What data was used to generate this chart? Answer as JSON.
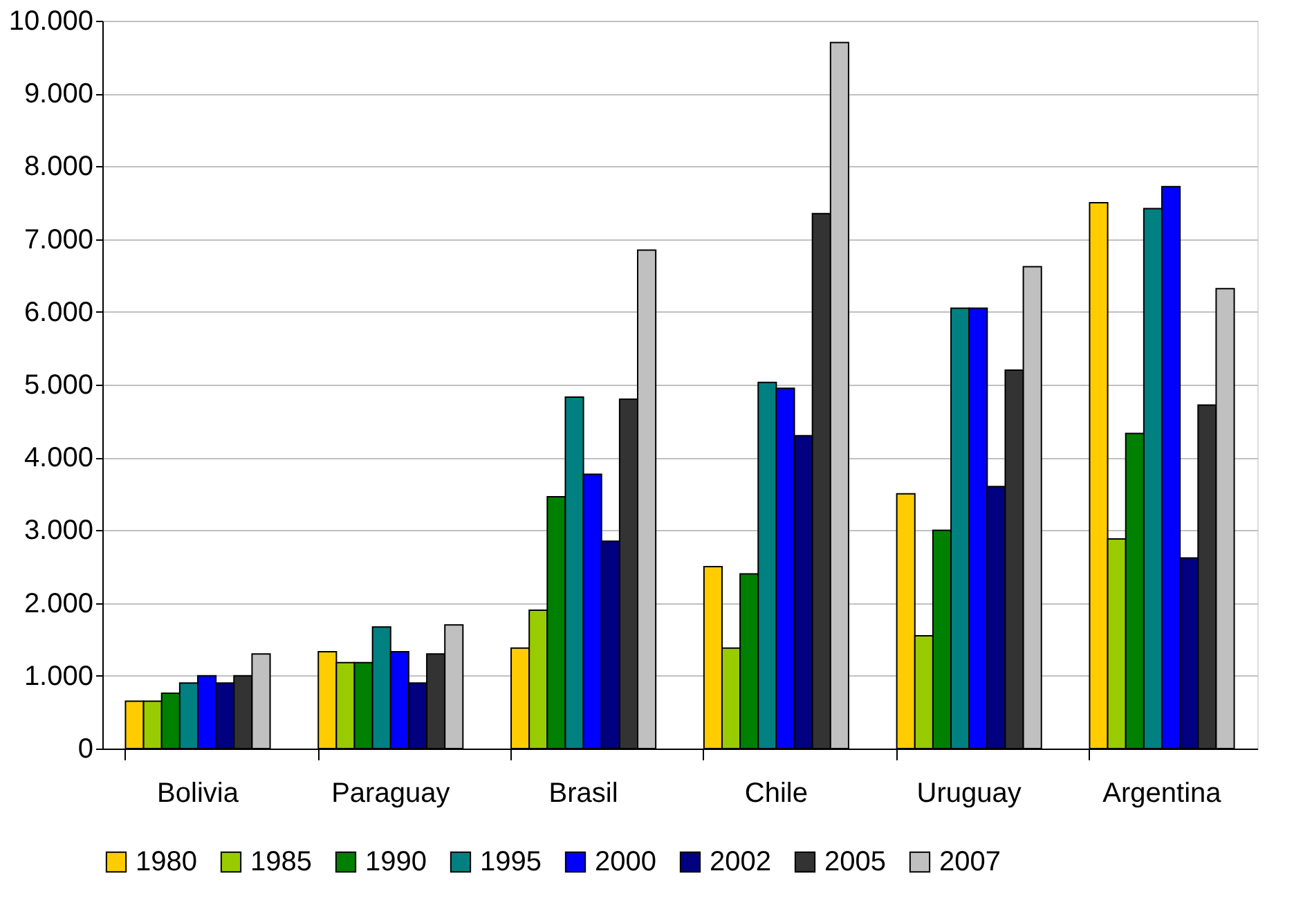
{
  "chart_data": {
    "type": "bar",
    "categories": [
      "Bolivia",
      "Paraguay",
      "Brasil",
      "Chile",
      "Uruguay",
      "Argentina"
    ],
    "series": [
      {
        "name": "1980",
        "color": "#ffcc00",
        "values": [
          650,
          1330,
          1380,
          2500,
          3500,
          7500
        ]
      },
      {
        "name": "1985",
        "color": "#99cc00",
        "values": [
          650,
          1180,
          1900,
          1380,
          1550,
          2880
        ]
      },
      {
        "name": "1990",
        "color": "#008000",
        "values": [
          760,
          1180,
          3460,
          2400,
          3000,
          4330
        ]
      },
      {
        "name": "1995",
        "color": "#008080",
        "values": [
          900,
          1670,
          4830,
          5030,
          6050,
          7420
        ]
      },
      {
        "name": "2000",
        "color": "#0000ff",
        "values": [
          1000,
          1330,
          3770,
          4950,
          6050,
          7720
        ]
      },
      {
        "name": "2002",
        "color": "#000080",
        "values": [
          900,
          900,
          2850,
          4300,
          3600,
          2620
        ]
      },
      {
        "name": "2005",
        "color": "#333333",
        "values": [
          1000,
          1300,
          4800,
          7350,
          5200,
          4720
        ]
      },
      {
        "name": "2007",
        "color": "#c0c0c0",
        "values": [
          1300,
          1700,
          6850,
          9700,
          6620,
          6320
        ]
      }
    ],
    "ylim": [
      0,
      10000
    ],
    "yticks": [
      0,
      {
        "value": 1000,
        "label": "1.000"
      },
      {
        "value": 2000,
        "label": "2.000"
      },
      {
        "value": 3000,
        "label": "3.000"
      },
      {
        "value": 4000,
        "label": "4.000"
      },
      {
        "value": 5000,
        "label": "5.000"
      },
      {
        "value": 6000,
        "label": "6.000"
      },
      {
        "value": 7000,
        "label": "7.000"
      },
      {
        "value": 8000,
        "label": "8.000"
      },
      {
        "value": 9000,
        "label": "9.000"
      },
      {
        "value": 10000,
        "label": "10.000"
      }
    ],
    "grid": "y",
    "legend": "bottom"
  }
}
